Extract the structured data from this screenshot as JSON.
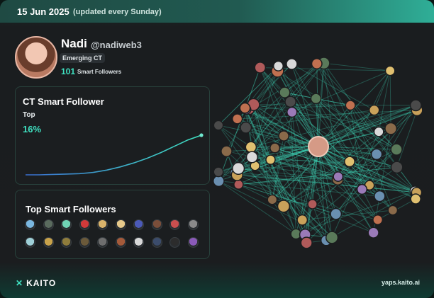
{
  "header": {
    "date": "15 Jun 2025",
    "update_note": "(updated every Sunday)"
  },
  "profile": {
    "name": "Nadi",
    "handle": "@nadiweb3",
    "badge": "Emerging CT",
    "smart_followers_count": "101",
    "smart_followers_label": "Smart Followers"
  },
  "ct_panel": {
    "title": "CT Smart Follower",
    "rank_label": "Top",
    "percentile": "16%",
    "trend_points": [
      0.0,
      0.0,
      0.01,
      0.02,
      0.03,
      0.06,
      0.12,
      0.2,
      0.3,
      0.42,
      0.56,
      0.72,
      0.88,
      1.0
    ]
  },
  "top_followers": {
    "title": "Top Smart Followers",
    "avatar_colors": [
      "#7ab7e0",
      "#5a6b5e",
      "#6fd3b5",
      "#d23a3a",
      "#d9b36a",
      "#e6c98a",
      "#4b5ab8",
      "#7a4e3a",
      "#c94f4f",
      "#8a8a8a",
      "#9fd0d8",
      "#c8a24a",
      "#8f7c3b",
      "#6b5a3a",
      "#6e6e6e",
      "#a55a3a",
      "#d8d8d8",
      "#3b4c6b",
      "#2c2c2c",
      "#8a5ab8"
    ]
  },
  "brand": {
    "logo": "KAITO",
    "url": "yaps.kaito.ai",
    "accent": "#3fe0c0"
  }
}
